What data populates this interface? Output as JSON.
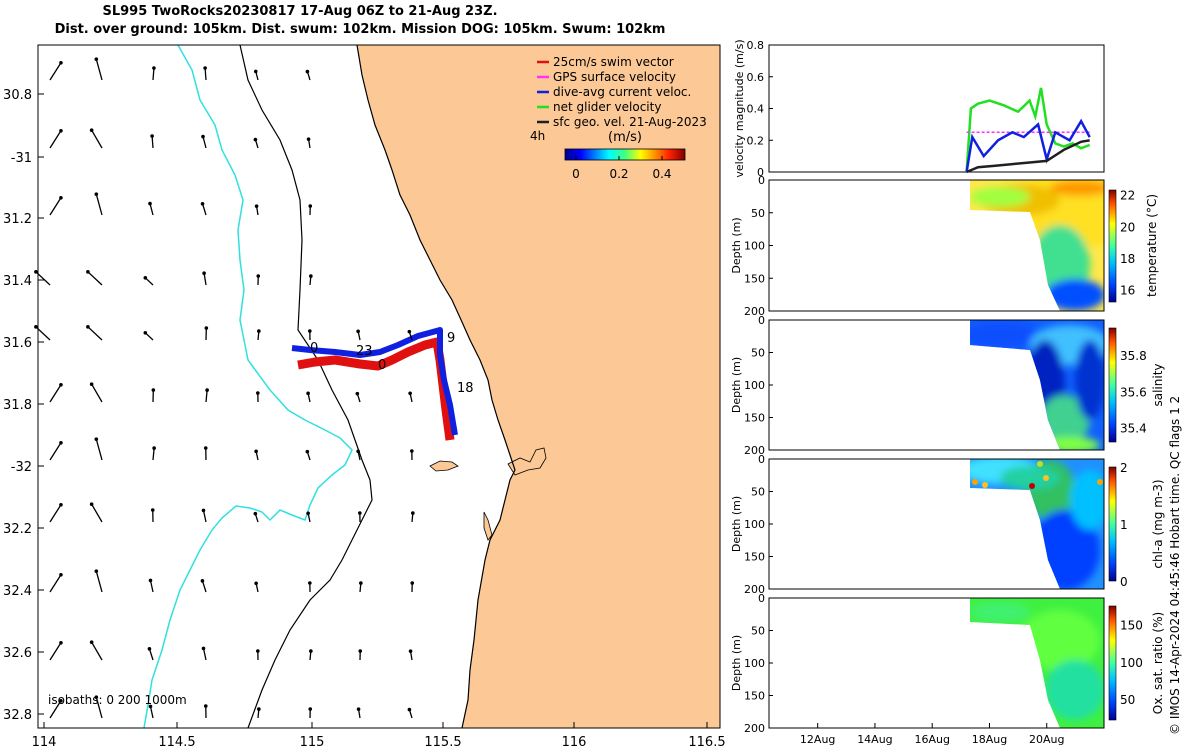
{
  "header": {
    "title_line1": "SL995 TwoRocks20230817 17-Aug 06Z to 21-Aug 23Z.",
    "title_line2": "Dist. over ground: 105km. Dist. swum: 102km. Mission DOG: 105km. Swum: 102km"
  },
  "footer": "© IMOS 14-Apr-2024 04:45:46 Hobart time. QC flags 1  2",
  "colors": {
    "land": "#fbc896",
    "isobath_0": "#000000",
    "isobath_200": "#30e0e0",
    "swim": "#e01010",
    "gps": "#ff30ff",
    "dive_avg": "#1020e0",
    "net": "#20e020",
    "geo": "#202020"
  },
  "map": {
    "lon_ticks": [
      "114",
      "114.5",
      "115",
      "115.5",
      "116",
      "116.5"
    ],
    "lat_ticks": [
      "30.8",
      "-31",
      "31.2",
      "31.4",
      "31.6",
      "31.8",
      "-32",
      "32.2",
      "32.4",
      "32.6",
      "32.8"
    ],
    "legend": [
      {
        "label": "25cm/s swim vector",
        "color": "#e01010"
      },
      {
        "label": "GPS surface velocity",
        "color": "#ff30ff"
      },
      {
        "label": "dive-avg current veloc.",
        "color": "#1020e0"
      },
      {
        "label": "net glider velocity",
        "color": "#20e020"
      },
      {
        "label": "sfc geo. vel. 21-Aug-2023",
        "color": "#202020"
      }
    ],
    "legend_time_label": "4h",
    "colorbar": {
      "title": "(m/s)",
      "ticks": [
        "0",
        "0.2",
        "0.4"
      ]
    },
    "isobaths_label": "isobaths: 0   200  1000m",
    "track_labels": [
      "23",
      "0",
      "9",
      "18",
      "0"
    ]
  },
  "chart_data": [
    {
      "type": "line",
      "ylabel": "velocity magnitude (m/s)",
      "ylim": [
        0,
        0.8
      ],
      "yticks": [
        "0",
        "0.2",
        "0.4",
        "0.6",
        "0.8"
      ],
      "series": [
        {
          "name": "net glider velocity",
          "color": "#20e020",
          "x": [
            17.2,
            17.35,
            17.6,
            18.0,
            18.5,
            19.0,
            19.4,
            19.6,
            19.8,
            20.0,
            20.3,
            20.6,
            20.9,
            21.2,
            21.5
          ],
          "values": [
            0.0,
            0.4,
            0.43,
            0.45,
            0.42,
            0.38,
            0.45,
            0.35,
            0.53,
            0.3,
            0.18,
            0.16,
            0.18,
            0.15,
            0.17
          ]
        },
        {
          "name": "GPS surface velocity",
          "color": "#ff30ff",
          "x": [
            17.2,
            21.5
          ],
          "values": [
            0.25,
            0.25
          ]
        },
        {
          "name": "dive-avg current veloc.",
          "color": "#1020e0",
          "x": [
            17.2,
            17.4,
            17.8,
            18.3,
            18.8,
            19.2,
            19.7,
            20.0,
            20.3,
            20.8,
            21.2,
            21.5
          ],
          "values": [
            0.0,
            0.22,
            0.1,
            0.2,
            0.25,
            0.22,
            0.3,
            0.08,
            0.25,
            0.2,
            0.32,
            0.22
          ]
        },
        {
          "name": "sfc geo. vel.",
          "color": "#202020",
          "x": [
            17.2,
            17.6,
            18.2,
            18.8,
            19.4,
            20.0,
            20.6,
            21.2,
            21.5
          ],
          "values": [
            0.0,
            0.03,
            0.04,
            0.05,
            0.06,
            0.07,
            0.14,
            0.19,
            0.2
          ]
        }
      ]
    },
    {
      "type": "heatmap",
      "variable": "temperature",
      "ylabel": "Depth (m)",
      "colorbar_label": "temperature (°C)",
      "yticks": [
        "0",
        "50",
        "100",
        "150",
        "200"
      ],
      "ylim": [
        0,
        200
      ],
      "cb_ticks": [
        "16",
        "18",
        "20",
        "22"
      ],
      "cb_range": [
        15.2,
        22.3
      ]
    },
    {
      "type": "heatmap",
      "variable": "salinity",
      "ylabel": "Depth (m)",
      "colorbar_label": "salinity",
      "yticks": [
        "0",
        "50",
        "100",
        "150",
        "200"
      ],
      "ylim": [
        0,
        200
      ],
      "cb_ticks": [
        "35.4",
        "35.6",
        "35.8"
      ],
      "cb_range": [
        35.32,
        35.95
      ]
    },
    {
      "type": "heatmap",
      "variable": "chl-a",
      "ylabel": "Depth (m)",
      "colorbar_label": "chl-a (mg m-3)",
      "yticks": [
        "0",
        "50",
        "100",
        "150",
        "200"
      ],
      "ylim": [
        0,
        200
      ],
      "cb_ticks": [
        "0",
        "1",
        "2"
      ],
      "cb_range": [
        0,
        2
      ]
    },
    {
      "type": "heatmap",
      "variable": "oxygen",
      "ylabel": "Depth (m)",
      "colorbar_label": "Ox. sat. ratio (%)",
      "yticks": [
        "0",
        "50",
        "100",
        "150",
        "200"
      ],
      "ylim": [
        0,
        200
      ],
      "cb_ticks": [
        "50",
        "100",
        "150"
      ],
      "cb_range": [
        22,
        175
      ]
    }
  ],
  "time_axis": {
    "ticks": [
      "12Aug",
      "14Aug",
      "16Aug",
      "18Aug",
      "20Aug"
    ],
    "xlim": [
      10.3,
      22.0
    ]
  }
}
